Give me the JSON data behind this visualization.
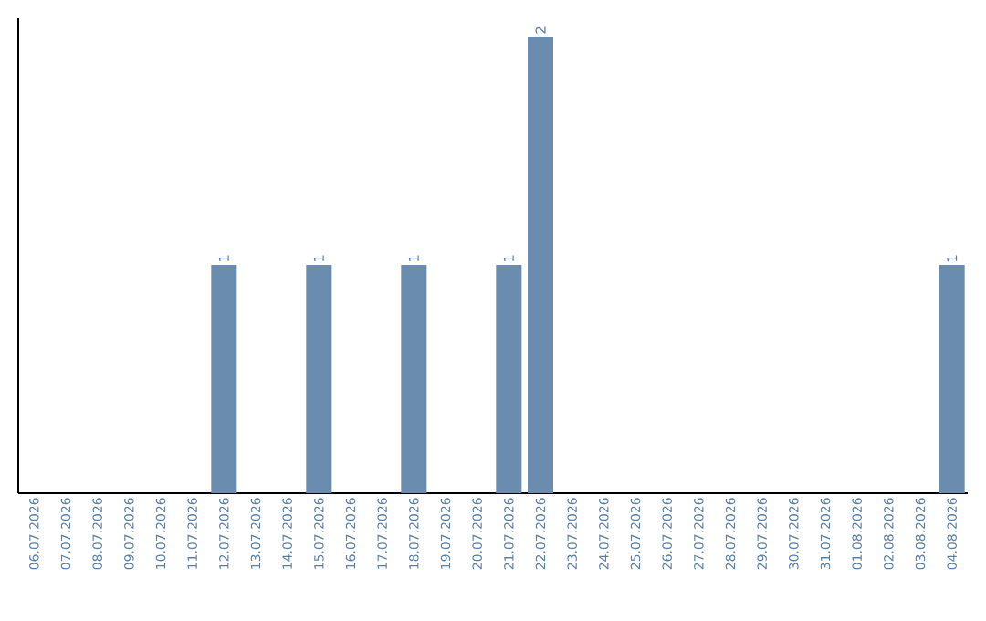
{
  "chart_data": {
    "type": "bar",
    "categories": [
      "06.07.2026",
      "07.07.2026",
      "08.07.2026",
      "09.07.2026",
      "10.07.2026",
      "11.07.2026",
      "12.07.2026",
      "13.07.2026",
      "14.07.2026",
      "15.07.2026",
      "16.07.2026",
      "17.07.2026",
      "18.07.2026",
      "19.07.2026",
      "20.07.2026",
      "21.07.2026",
      "22.07.2026",
      "23.07.2026",
      "24.07.2026",
      "25.07.2026",
      "26.07.2026",
      "27.07.2026",
      "28.07.2026",
      "29.07.2026",
      "30.07.2026",
      "31.07.2026",
      "01.08.2026",
      "02.08.2026",
      "03.08.2026",
      "04.08.2026"
    ],
    "values": [
      0,
      0,
      0,
      0,
      0,
      0,
      1,
      0,
      0,
      1,
      0,
      0,
      1,
      0,
      0,
      1,
      2,
      0,
      0,
      0,
      0,
      0,
      0,
      0,
      0,
      0,
      0,
      0,
      0,
      1
    ],
    "value_labels": [
      null,
      null,
      null,
      null,
      null,
      null,
      "1",
      null,
      null,
      "1",
      null,
      null,
      "1",
      null,
      null,
      "1",
      "2",
      null,
      null,
      null,
      null,
      null,
      null,
      null,
      null,
      null,
      null,
      null,
      null,
      "1"
    ],
    "color": "#6a8caf",
    "grid": false
  }
}
